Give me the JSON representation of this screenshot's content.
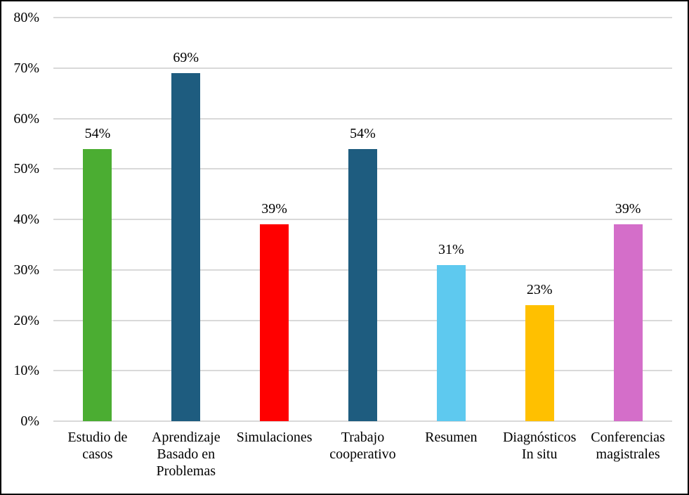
{
  "chart_data": {
    "type": "bar",
    "title": "",
    "xlabel": "",
    "ylabel": "",
    "categories": [
      "Estudio de casos",
      "Aprendizaje Basado en Problemas",
      "Simulaciones",
      "Trabajo cooperativo",
      "Resumen",
      "Diagnósticos In situ",
      "Conferencias magistrales"
    ],
    "values": [
      54,
      69,
      39,
      54,
      31,
      23,
      39
    ],
    "data_labels": [
      "54%",
      "69%",
      "39%",
      "54%",
      "31%",
      "23%",
      "39%"
    ],
    "bar_colors": [
      "#4BAD32",
      "#1E5C7F",
      "#FF0000",
      "#1E5C7F",
      "#5EC9EF",
      "#FFC000",
      "#D46EC9"
    ],
    "ylim": [
      0,
      80
    ],
    "ytick_values": [
      0,
      10,
      20,
      30,
      40,
      50,
      60,
      70,
      80
    ],
    "ytick_labels": [
      "0%",
      "10%",
      "20%",
      "30%",
      "40%",
      "50%",
      "60%",
      "70%",
      "80%"
    ],
    "grid": true,
    "legend": "none"
  },
  "colors": {
    "background": "#FFFFFF",
    "border": "#000000",
    "gridline": "#D9D9D9",
    "axis_line": "#D9D9D9",
    "text": "#000000"
  }
}
